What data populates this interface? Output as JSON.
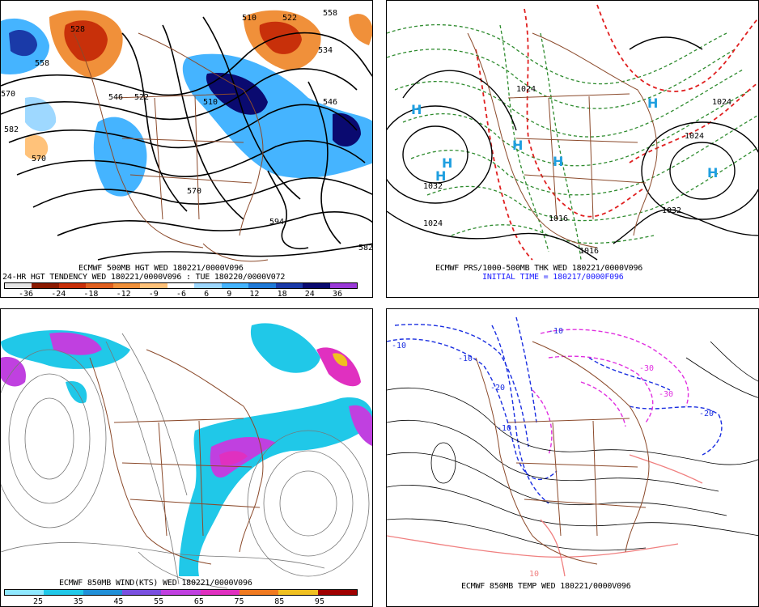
{
  "panels": {
    "hgt500": {
      "caption_line1": "ECMWF 500MB HGT WED 180221/0000V096",
      "caption_line2": "24-HR HGT TENDENCY WED 180221/0000V096 : TUE 180220/0000V072",
      "contour_labels": [
        "558",
        "528",
        "510",
        "522",
        "534",
        "558",
        "570",
        "582",
        "546",
        "522",
        "510",
        "546",
        "570",
        "570",
        "594",
        "582"
      ],
      "colorbar": {
        "ticks": [
          "-36",
          "-24",
          "-18",
          "-12",
          "-9",
          "-6",
          "6",
          "9",
          "12",
          "18",
          "24",
          "36"
        ],
        "colors": [
          "#e6e6e6",
          "#8b1a00",
          "#c8300a",
          "#e06020",
          "#f0903a",
          "#ffc27a",
          "#ffffff",
          "#9ed8ff",
          "#45b4ff",
          "#1f7ad8",
          "#1a3aa8",
          "#0a0a70",
          "#9b3ad8"
        ]
      }
    },
    "prs": {
      "caption_line1": "ECMWF PRS/1000-500MB THK WED 180221/0000V096",
      "caption_line2": "INITIAL TIME = 180217/0000F096",
      "isobar_labels": [
        "1032",
        "1024",
        "1024",
        "1032",
        "1024",
        "1016",
        "1016",
        "1024"
      ],
      "high_symbol": "H"
    },
    "wind850": {
      "caption": "ECMWF 850MB WIND(KTS) WED 180221/0000V096",
      "colorbar": {
        "ticks": [
          "25",
          "35",
          "45",
          "55",
          "65",
          "75",
          "85",
          "95"
        ],
        "colors": [
          "#8fe8ff",
          "#20c8e8",
          "#2090d8",
          "#7a50e0",
          "#c040e0",
          "#e030c0",
          "#f07a20",
          "#f0c020",
          "#a00000"
        ]
      }
    },
    "temp850": {
      "caption": "ECMWF 850MB TEMP WED 180221/0000V096",
      "isotherm_labels": [
        "-10",
        "-10",
        "-20",
        "-10",
        "-30",
        "-30",
        "-20",
        "10",
        "-10"
      ]
    }
  }
}
